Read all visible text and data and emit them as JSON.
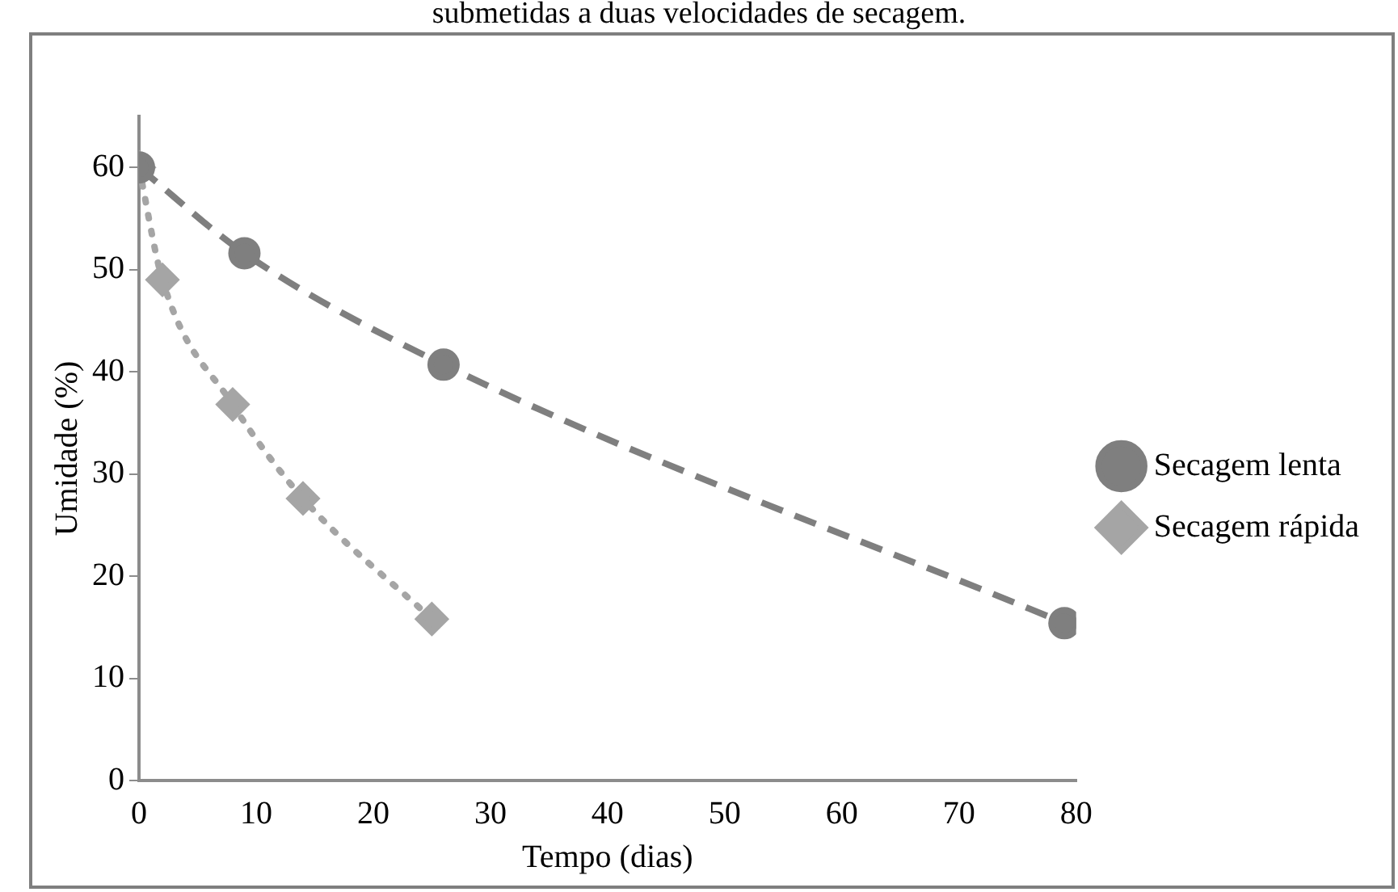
{
  "chart_data": {
    "type": "line",
    "xlabel": "Tempo (dias)",
    "ylabel": "Umidade (%)",
    "annotations": [
      "submetidas a duas velocidades de secagem."
    ],
    "xlim": [
      0,
      80
    ],
    "xticks": [
      0,
      10,
      20,
      30,
      40,
      50,
      60,
      70,
      80
    ],
    "ylim": [
      0,
      65
    ],
    "yticks": [
      0,
      10,
      20,
      30,
      40,
      50,
      60
    ],
    "grid": false,
    "legend": "right",
    "series": [
      {
        "name": "Secagem lenta",
        "color": "#7f7f7f",
        "x": [
          0,
          9,
          26,
          79
        ],
        "values": [
          60,
          51.6,
          40.7,
          15.4
        ],
        "marker": "circle",
        "line_style": "dashed"
      },
      {
        "name": "Secagem rápida",
        "color": "#a5a5a5",
        "x": [
          0,
          2,
          8,
          14,
          25
        ],
        "values": [
          60,
          49,
          36.8,
          27.6,
          15.8
        ],
        "marker": "diamond",
        "line_style": "dotted"
      }
    ]
  }
}
